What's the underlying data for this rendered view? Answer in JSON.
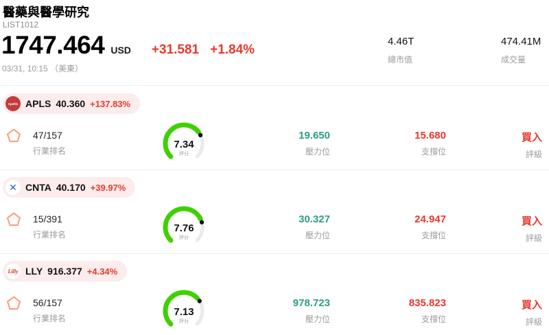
{
  "header": {
    "title": "醫藥與醫學研究",
    "list_id": "LIST1012",
    "price": "1747.464",
    "currency": "USD",
    "change": "+31.581",
    "change_pct": "+1.84%",
    "timestamp": "03/31, 10:15 （美東）",
    "market_cap": {
      "value": "4.46T",
      "label": "總市值"
    },
    "volume": {
      "value": "474.41M",
      "label": "成交量"
    }
  },
  "labels": {
    "industry_rank": "行業排名",
    "score": "評分",
    "pressure": "壓力位",
    "support": "支撐位",
    "rating": "評級"
  },
  "stocks": [
    {
      "ticker": "APLS",
      "price": "40.360",
      "change_pct": "+137.83%",
      "logo_text": "Apellis",
      "rank": "47/157",
      "score": "7.34",
      "pressure": "19.650",
      "support": "15.680",
      "rating": "買入"
    },
    {
      "ticker": "CNTA",
      "price": "40.170",
      "change_pct": "+39.97%",
      "logo_text": "✕",
      "rank": "15/391",
      "score": "7.76",
      "pressure": "30.327",
      "support": "24.947",
      "rating": "買入"
    },
    {
      "ticker": "LLY",
      "price": "916.377",
      "change_pct": "+4.34%",
      "logo_text": "Lilly",
      "rank": "56/157",
      "score": "7.13",
      "pressure": "978.723",
      "support": "835.823",
      "rating": "買入"
    }
  ],
  "colors": {
    "up_red": "#e8372c",
    "pressure_teal": "#2b9c85",
    "gauge_green": "#3fd000",
    "badge_pink": "#fdecec",
    "apls_logo_red": "#c43a3c",
    "cnta_logo_blue": "#2a66cc",
    "lly_logo_red": "#e1251b"
  }
}
